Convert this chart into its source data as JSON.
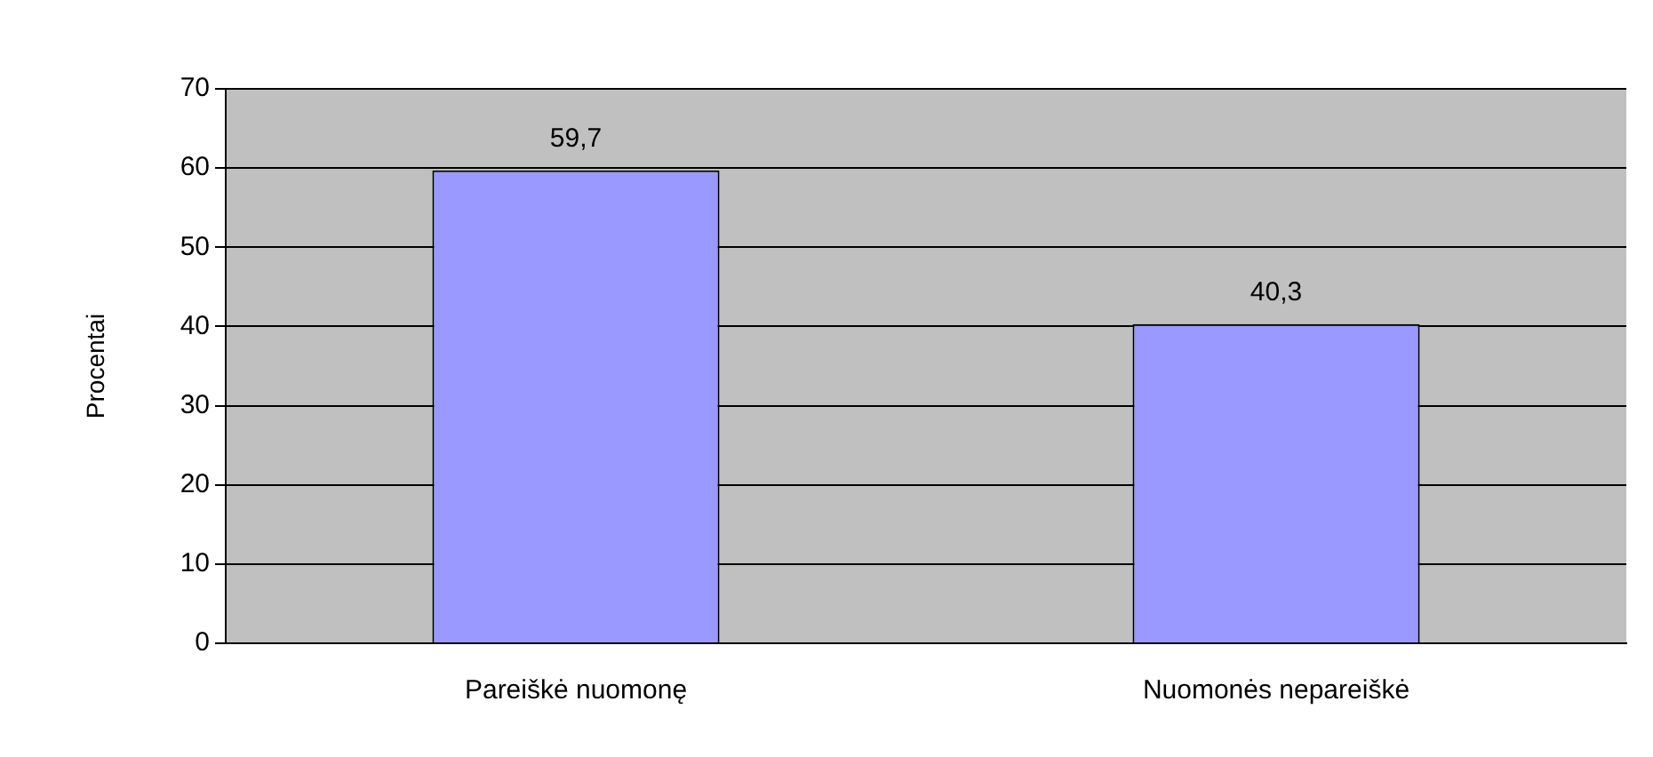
{
  "chart_data": {
    "type": "bar",
    "ylabel": "Procentai",
    "categories": [
      "Pareiškė nuomonę",
      "Nuomonės nepareiškė"
    ],
    "values": [
      59.7,
      40.3
    ],
    "value_labels": [
      "59,7",
      "40,3"
    ],
    "color": "#9999ff",
    "ylim": [
      0,
      70
    ],
    "yticks": [
      0,
      10,
      20,
      30,
      40,
      50,
      60,
      70
    ],
    "grid": "y"
  }
}
